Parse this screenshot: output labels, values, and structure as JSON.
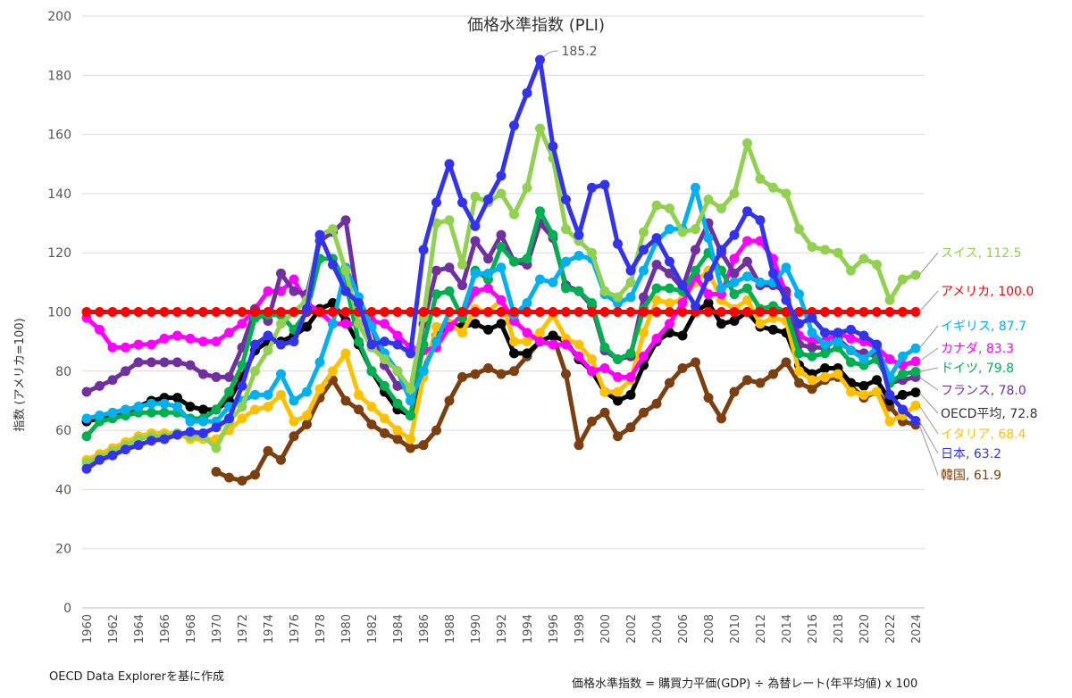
{
  "chart_data": {
    "type": "line",
    "title": "価格水準指数 (PLI)",
    "xlabel": "",
    "ylabel": "指数 (アメリカ=100)",
    "ylim": [
      0,
      200
    ],
    "yticks": [
      0,
      20,
      40,
      60,
      80,
      100,
      120,
      140,
      160,
      180,
      200
    ],
    "grid": true,
    "x": [
      1960,
      1961,
      1962,
      1963,
      1964,
      1965,
      1966,
      1967,
      1968,
      1969,
      1970,
      1971,
      1972,
      1973,
      1974,
      1975,
      1976,
      1977,
      1978,
      1979,
      1980,
      1981,
      1982,
      1983,
      1984,
      1985,
      1986,
      1987,
      1988,
      1989,
      1990,
      1991,
      1992,
      1993,
      1994,
      1995,
      1996,
      1997,
      1998,
      1999,
      2000,
      2001,
      2002,
      2003,
      2004,
      2005,
      2006,
      2007,
      2008,
      2009,
      2010,
      2011,
      2012,
      2013,
      2014,
      2015,
      2016,
      2017,
      2018,
      2019,
      2020,
      2021,
      2022,
      2023,
      2024
    ],
    "xtick_labels": [
      "1960",
      "1962",
      "1964",
      "1966",
      "1968",
      "1970",
      "1972",
      "1974",
      "1976",
      "1978",
      "1980",
      "1982",
      "1984",
      "1986",
      "1988",
      "1990",
      "1992",
      "1994",
      "1996",
      "1998",
      "2000",
      "2002",
      "2004",
      "2006",
      "2008",
      "2010",
      "2012",
      "2014",
      "2016",
      "2018",
      "2020",
      "2022",
      "2024"
    ],
    "series": [
      {
        "name": "韓国",
        "end_label": "韓国, 61.9",
        "color": "#7B3F10",
        "values": [
          null,
          null,
          null,
          null,
          null,
          null,
          null,
          null,
          null,
          null,
          46,
          44,
          43,
          45,
          53,
          50,
          58,
          62,
          71,
          77,
          70,
          67,
          62,
          59,
          57,
          54,
          55,
          60,
          70,
          78,
          79,
          81,
          79,
          80,
          85,
          90,
          92,
          79,
          55,
          63,
          66,
          58,
          61,
          66,
          69,
          76,
          81,
          83,
          71,
          64,
          73,
          77,
          76,
          79,
          83,
          76,
          74,
          77,
          78,
          75,
          71,
          73,
          68,
          63,
          61.9
        ]
      },
      {
        "name": "OECD平均",
        "end_label": "OECD平均, 72.8",
        "color": "#000000",
        "values": [
          63,
          64,
          65,
          66,
          68,
          70,
          71,
          71,
          68,
          67,
          67,
          70,
          78,
          87,
          90,
          90,
          92,
          95,
          101,
          103,
          97,
          89,
          80,
          73,
          67,
          65,
          80,
          92,
          96,
          95,
          96,
          94,
          96,
          86,
          86,
          90,
          92,
          90,
          84,
          80,
          73,
          70,
          72,
          82,
          90,
          93,
          92,
          100,
          103,
          96,
          97,
          100,
          95,
          94,
          93,
          82,
          79,
          81,
          81,
          76,
          75,
          77,
          70,
          72,
          72.8
        ]
      },
      {
        "name": "イタリア",
        "end_label": "イタリア, 68.4",
        "color": "#FFC000",
        "values": [
          50,
          52,
          54,
          56,
          58,
          59,
          59,
          59,
          57,
          57,
          57,
          60,
          64,
          67,
          68,
          72,
          63,
          65,
          74,
          80,
          86,
          72,
          68,
          64,
          60,
          57,
          78,
          95,
          96,
          93,
          101,
          100,
          104,
          90,
          90,
          93,
          99,
          91,
          89,
          84,
          73,
          73,
          77,
          93,
          104,
          103,
          104,
          110,
          114,
          104,
          101,
          104,
          96,
          98,
          97,
          80,
          77,
          78,
          79,
          73,
          72,
          73,
          63,
          65,
          68.4
        ]
      },
      {
        "name": "カナダ",
        "end_label": "カナダ, 83.3",
        "color": "#FF00FF",
        "values": [
          98,
          94,
          88,
          88,
          89,
          89,
          91,
          92,
          91,
          90,
          90,
          93,
          96,
          101,
          107,
          107,
          111,
          103,
          100,
          96,
          96,
          96,
          97,
          96,
          92,
          88,
          87,
          88,
          95,
          99,
          107,
          108,
          104,
          97,
          93,
          90,
          89,
          89,
          85,
          80,
          81,
          78,
          78,
          85,
          91,
          96,
          103,
          112,
          106,
          106,
          118,
          124,
          124,
          118,
          106,
          92,
          90,
          90,
          93,
          91,
          90,
          88,
          84,
          82,
          83.3
        ]
      },
      {
        "name": "フランス",
        "end_label": "フランス, 78.0",
        "color": "#7030A0",
        "values": [
          73,
          75,
          77,
          80,
          83,
          83,
          83,
          83,
          82,
          79,
          78,
          78,
          88,
          101,
          97,
          113,
          107,
          106,
          124,
          127,
          131,
          102,
          95,
          82,
          75,
          74,
          96,
          114,
          115,
          109,
          124,
          118,
          126,
          117,
          116,
          130,
          125,
          109,
          107,
          102,
          87,
          84,
          85,
          105,
          116,
          113,
          108,
          121,
          130,
          120,
          113,
          117,
          109,
          109,
          107,
          89,
          88,
          88,
          91,
          87,
          86,
          85,
          76,
          77,
          78.0
        ]
      },
      {
        "name": "ドイツ",
        "end_label": "ドイツ, 79.8",
        "color": "#00B050",
        "values": [
          58,
          63,
          64,
          65,
          66,
          66,
          66,
          66,
          64,
          64,
          67,
          73,
          82,
          98,
          99,
          99,
          94,
          100,
          118,
          118,
          110,
          90,
          80,
          75,
          69,
          65,
          89,
          106,
          107,
          98,
          114,
          111,
          122,
          117,
          118,
          134,
          126,
          108,
          107,
          103,
          88,
          84,
          86,
          101,
          108,
          108,
          107,
          114,
          120,
          114,
          106,
          108,
          101,
          102,
          100,
          86,
          85,
          86,
          88,
          83,
          82,
          84,
          76,
          79,
          79.8
        ]
      },
      {
        "name": "イギリス",
        "end_label": "イギリス, 87.7",
        "color": "#00B0F0",
        "values": [
          64,
          65,
          66,
          67,
          68,
          69,
          69,
          68,
          63,
          63,
          63,
          68,
          70,
          72,
          72,
          79,
          70,
          73,
          83,
          96,
          115,
          105,
          95,
          86,
          80,
          70,
          80,
          90,
          100,
          100,
          113,
          113,
          115,
          99,
          103,
          111,
          110,
          117,
          119,
          118,
          106,
          103,
          105,
          114,
          124,
          128,
          128,
          142,
          125,
          108,
          110,
          112,
          110,
          110,
          115,
          106,
          93,
          89,
          90,
          87,
          84,
          88,
          78,
          85,
          87.7
        ]
      },
      {
        "name": "スイス",
        "end_label": "スイス, 112.5",
        "color": "#92D050",
        "values": [
          49,
          51,
          53,
          55,
          57,
          58,
          58,
          59,
          58,
          58,
          54,
          63,
          68,
          80,
          87,
          96,
          100,
          104,
          126,
          128,
          114,
          96,
          88,
          84,
          80,
          74,
          98,
          130,
          131,
          116,
          139,
          137,
          140,
          133,
          142,
          162,
          152,
          128,
          124,
          120,
          107,
          105,
          110,
          127,
          136,
          135,
          127,
          128,
          138,
          135,
          140,
          157,
          145,
          142,
          140,
          128,
          122,
          121,
          120,
          114,
          118,
          116,
          104,
          111,
          112.5
        ]
      },
      {
        "name": "アメリカ",
        "end_label": "アメリカ, 100.0",
        "color": "#FF0000",
        "values": [
          100,
          100,
          100,
          100,
          100,
          100,
          100,
          100,
          100,
          100,
          100,
          100,
          100,
          100,
          100,
          100,
          100,
          100,
          100,
          100,
          100,
          100,
          100,
          100,
          100,
          100,
          100,
          100,
          100,
          100,
          100,
          100,
          100,
          100,
          100,
          100,
          100,
          100,
          100,
          100,
          100,
          100,
          100,
          100,
          100,
          100,
          100,
          100,
          100,
          100,
          100,
          100,
          100,
          100,
          100,
          100,
          100,
          100,
          100,
          100,
          100,
          100,
          100,
          100,
          100.0
        ]
      },
      {
        "name": "日本",
        "end_label": "日本, 63.2",
        "color": "#3333EE",
        "values": [
          47,
          50,
          51.5,
          53.5,
          55,
          56.5,
          57,
          58.5,
          59.5,
          59,
          61,
          64,
          75,
          89,
          92,
          89,
          90,
          101,
          126,
          116,
          107,
          103,
          89,
          90,
          89,
          86,
          121,
          137,
          150,
          137,
          129,
          138,
          146,
          163,
          174,
          185.2,
          156,
          138,
          126,
          142,
          143,
          123,
          114,
          121,
          125,
          117,
          109,
          102,
          112,
          121,
          126,
          134,
          131,
          113,
          104,
          96,
          98,
          93,
          93,
          94,
          92,
          89,
          72,
          67,
          63.2
        ]
      }
    ],
    "annotations": [
      {
        "series": "日本",
        "year": 1995,
        "text": "185.2"
      }
    ]
  },
  "footer": {
    "source": "OECD Data Explorerを基に作成",
    "formula": "価格水準指数 = 購買力平価(GDP) ÷ 為替レート(年平均値) x 100"
  }
}
